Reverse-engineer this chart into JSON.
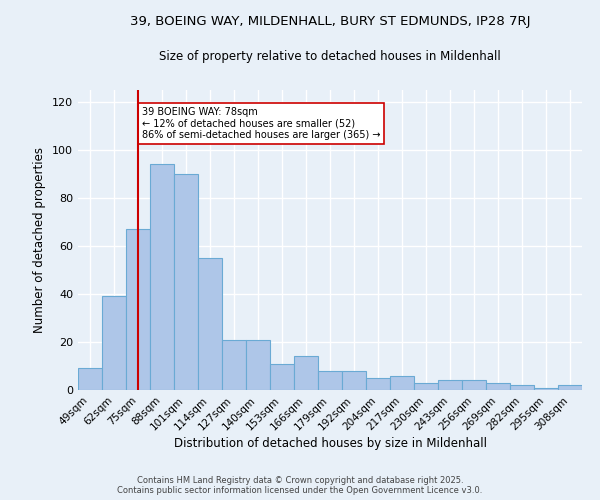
{
  "title_line1": "39, BOEING WAY, MILDENHALL, BURY ST EDMUNDS, IP28 7RJ",
  "title_line2": "Size of property relative to detached houses in Mildenhall",
  "xlabel": "Distribution of detached houses by size in Mildenhall",
  "ylabel": "Number of detached properties",
  "categories": [
    "49sqm",
    "62sqm",
    "75sqm",
    "88sqm",
    "101sqm",
    "114sqm",
    "127sqm",
    "140sqm",
    "153sqm",
    "166sqm",
    "179sqm",
    "192sqm",
    "204sqm",
    "217sqm",
    "230sqm",
    "243sqm",
    "256sqm",
    "269sqm",
    "282sqm",
    "295sqm",
    "308sqm"
  ],
  "values": [
    9,
    39,
    67,
    94,
    90,
    55,
    21,
    21,
    11,
    14,
    8,
    8,
    5,
    6,
    3,
    4,
    4,
    3,
    2,
    1,
    2
  ],
  "bar_color": "#aec6e8",
  "bar_edge_color": "#6aaad4",
  "vline_x": 2,
  "vline_color": "#cc0000",
  "annotation_text": "39 BOEING WAY: 78sqm\n← 12% of detached houses are smaller (52)\n86% of semi-detached houses are larger (365) →",
  "annotation_box_color": "#ffffff",
  "annotation_box_edge": "#cc0000",
  "ylim": [
    0,
    125
  ],
  "yticks": [
    0,
    20,
    40,
    60,
    80,
    100,
    120
  ],
  "background_color": "#e8f0f8",
  "grid_color": "#ffffff",
  "footer_line1": "Contains HM Land Registry data © Crown copyright and database right 2025.",
  "footer_line2": "Contains public sector information licensed under the Open Government Licence v3.0."
}
